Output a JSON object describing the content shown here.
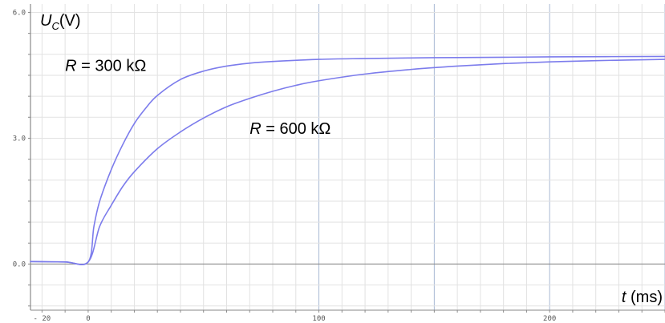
{
  "chart_data": {
    "type": "line",
    "title": "",
    "ylabel": {
      "symbol": "U",
      "subscript": "C",
      "unit": "(V)"
    },
    "xlabel": {
      "symbol": "t",
      "unit": " (ms)"
    },
    "xlim": [
      -25,
      250
    ],
    "ylim": [
      -1.1,
      6.2
    ],
    "x_ticks": [
      {
        "value": -20,
        "label": "- 20"
      },
      {
        "value": 0,
        "label": "0"
      },
      {
        "value": 100,
        "label": "100"
      },
      {
        "value": 200,
        "label": "200"
      }
    ],
    "y_ticks": [
      {
        "value": 0,
        "label": "0.0"
      },
      {
        "value": 3,
        "label": "3.0"
      },
      {
        "value": 6,
        "label": "6.0"
      }
    ],
    "grid": true,
    "series": [
      {
        "name": "R = 300 kΩ",
        "label_parts": [
          "R",
          " = 300 kΩ"
        ],
        "color": "#7c7cec",
        "x": [
          -25,
          -10,
          0,
          2.5,
          5,
          10,
          15,
          20,
          25,
          30,
          40,
          50,
          60,
          70,
          80,
          100,
          120,
          150,
          180,
          200,
          250
        ],
        "y": [
          0.06,
          0.05,
          0.05,
          0.9,
          1.5,
          2.25,
          2.85,
          3.35,
          3.72,
          4.02,
          4.4,
          4.6,
          4.72,
          4.79,
          4.83,
          4.88,
          4.9,
          4.92,
          4.93,
          4.94,
          4.95
        ]
      },
      {
        "name": "R = 600 kΩ",
        "label_parts": [
          "R",
          " = 600 kΩ"
        ],
        "color": "#7c7cec",
        "x": [
          -25,
          -10,
          0,
          5,
          10,
          15,
          20,
          30,
          40,
          50,
          60,
          70,
          80,
          90,
          100,
          120,
          140,
          160,
          180,
          200,
          220,
          250
        ],
        "y": [
          0.06,
          0.05,
          0.05,
          0.9,
          1.4,
          1.85,
          2.2,
          2.75,
          3.15,
          3.48,
          3.75,
          3.95,
          4.12,
          4.26,
          4.37,
          4.53,
          4.64,
          4.72,
          4.78,
          4.82,
          4.85,
          4.88
        ]
      }
    ],
    "annotations": [
      {
        "series": 0,
        "anchor": {
          "x": -10,
          "y": 4.6
        }
      },
      {
        "series": 1,
        "anchor": {
          "x": 70,
          "y": 3.1
        }
      }
    ],
    "colors": {
      "major_grid": "#a9b9d4",
      "minor_grid": "#e2e2e2",
      "axis": "#8a8a8a"
    }
  }
}
